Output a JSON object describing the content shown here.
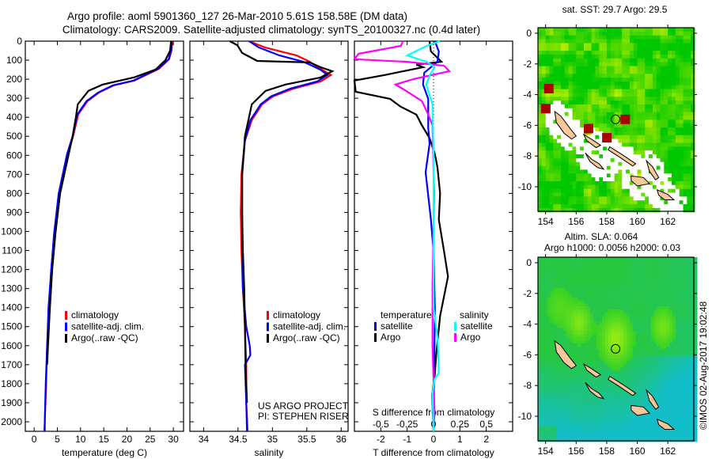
{
  "header": {
    "title_line1": "Argo profile: aoml 5901360_127 26-Mar-2010 5.61S 158.58E (DM data)",
    "title_line2": "Climatology: CARS2009. Satellite-adjusted climatology: synTS_20100327.nc (0.4d later)"
  },
  "colors": {
    "climatology": "#ff0000",
    "satellite": "#0000ff",
    "argo": "#000000",
    "sal_satellite": "#00ffff",
    "sal_argo": "#ff00ff",
    "land": "#f8c898"
  },
  "chart_data": [
    {
      "id": "temperature",
      "type": "line",
      "xlabel": "temperature (deg C)",
      "ylabel": "",
      "xlim": [
        -1.9,
        32.2
      ],
      "ylim": [
        2050,
        0
      ],
      "depth_ticks": [
        "0",
        "100",
        "200",
        "300",
        "400",
        "500",
        "600",
        "700",
        "800",
        "900",
        "1000",
        "1100",
        "1200",
        "1300",
        "1400",
        "1500",
        "1600",
        "1700",
        "1800",
        "1900",
        "2000"
      ],
      "x_ticks": [
        "0",
        "5",
        "10",
        "15",
        "20",
        "25",
        "30"
      ],
      "legend": [
        "climatology",
        "satellite-adj. clim.",
        "Argo(..raw -QC)"
      ],
      "series": [
        {
          "name": "climatology",
          "color": "#ff0000",
          "depth": [
            0,
            50,
            95,
            145,
            207,
            232,
            270,
            315,
            385,
            500,
            593,
            800,
            1010,
            1200,
            1400,
            1600,
            1800,
            2000,
            2050
          ],
          "values": [
            29.8,
            29.6,
            29.1,
            26.9,
            21.6,
            17.2,
            14.0,
            11.5,
            9.5,
            8.4,
            7.3,
            5.4,
            4.4,
            3.7,
            3.2,
            2.8,
            2.6,
            2.3,
            2.2
          ]
        },
        {
          "name": "satellite-adj. clim.",
          "color": "#0000ff",
          "depth": [
            0,
            50,
            95,
            145,
            207,
            232,
            270,
            315,
            385,
            500,
            593,
            800,
            1010,
            1200,
            1400,
            1600,
            1800,
            2000,
            2050
          ],
          "values": [
            29.7,
            29.5,
            29.0,
            26.7,
            21.4,
            17.0,
            13.8,
            11.3,
            9.3,
            8.3,
            7.1,
            5.3,
            4.3,
            3.7,
            3.1,
            2.8,
            2.5,
            2.3,
            2.3
          ]
        },
        {
          "name": "Argo(..raw -QC)",
          "color": "#000000",
          "depth": [
            0,
            50,
            100,
            149,
            190,
            228,
            261,
            332,
            400,
            500,
            600,
            800,
            1010,
            1200,
            1400,
            1600,
            1700
          ],
          "values": [
            29.5,
            29.3,
            28.3,
            26.2,
            21.6,
            14.8,
            11.7,
            9.4,
            9.0,
            8.3,
            7.4,
            5.6,
            4.6,
            3.9,
            3.4,
            3.0,
            2.8
          ]
        }
      ]
    },
    {
      "id": "salinity",
      "type": "line",
      "xlabel": "salinity",
      "xlim": [
        33.8,
        36.1
      ],
      "ylim": [
        2050,
        0
      ],
      "x_ticks": [
        "34",
        "34.5",
        "35",
        "35.5",
        "36"
      ],
      "legend": [
        "climatology",
        "satellite-adj. clim.",
        "Argo(..raw -QC)"
      ],
      "annotation": [
        "US ARGO PROJECT",
        "PI: STEPHEN RISER"
      ],
      "series": [
        {
          "name": "climatology",
          "color": "#ff0000",
          "depth": [
            0,
            33,
            75,
            108,
            150,
            178,
            212,
            249,
            290,
            332,
            415,
            523,
            700,
            900,
            1100,
            1300,
            1500,
            1700,
            1900,
            2050
          ],
          "values": [
            34.66,
            34.89,
            35.35,
            35.54,
            35.72,
            35.85,
            35.7,
            35.31,
            35.01,
            34.85,
            34.7,
            34.6,
            34.55,
            34.54,
            34.55,
            34.57,
            34.6,
            34.62,
            34.62,
            34.64
          ]
        },
        {
          "name": "satellite-adj. clim.",
          "color": "#0000ff",
          "depth": [
            0,
            33,
            75,
            108,
            150,
            178,
            212,
            249,
            290,
            332,
            415,
            523,
            700,
            900,
            1100,
            1300,
            1500,
            1600,
            1650,
            1700,
            1900,
            2050
          ],
          "values": [
            34.66,
            34.8,
            35.1,
            35.45,
            35.7,
            35.8,
            35.65,
            35.26,
            34.98,
            34.83,
            34.68,
            34.6,
            34.56,
            34.56,
            34.56,
            34.57,
            34.62,
            34.67,
            34.68,
            34.6,
            34.62,
            34.63
          ]
        },
        {
          "name": "Argo(..raw -QC)",
          "color": "#000000",
          "depth": [
            0,
            21,
            62,
            104,
            112,
            137,
            158,
            191,
            228,
            261,
            332,
            500,
            700,
            900,
            1100,
            1300,
            1500,
            1700,
            1900
          ],
          "values": [
            34.38,
            34.49,
            34.56,
            34.78,
            35.54,
            35.7,
            35.87,
            35.7,
            35.19,
            34.9,
            34.7,
            34.6,
            34.56,
            34.56,
            34.57,
            34.59,
            34.6,
            34.61,
            34.63
          ]
        }
      ]
    },
    {
      "id": "differences",
      "type": "line",
      "xlabel": "T difference from climatology",
      "xlabel2": "S difference from climatology",
      "xlim_T": [
        -3,
        3
      ],
      "xlim_S": [
        -0.75,
        0.75
      ],
      "ylim": [
        2050,
        0
      ],
      "x_ticks_T": [
        "-2",
        "-1",
        "0",
        "1",
        "2"
      ],
      "x_ticks_S": [
        "-0.5",
        "-0.25",
        "0",
        "0.25",
        "0.5"
      ],
      "legend": {
        "temperature_header": "temperature",
        "salinity_header": "salinity",
        "items": [
          "satellite",
          "Argo",
          "satellite",
          "Argo"
        ]
      },
      "series": [
        {
          "name": "temperature Argo",
          "color": "#000000",
          "scale": "T",
          "depth": [
            0,
            54,
            108,
            124,
            137,
            178,
            207,
            266,
            303,
            344,
            386,
            440,
            510,
            593,
            664,
            800,
            938,
            1104,
            1237,
            1444,
            1651,
            1747,
            1859,
            2050
          ],
          "values": [
            -0.15,
            -0.1,
            0.3,
            -0.65,
            -0.4,
            -1.85,
            -3,
            -2.95,
            -1.65,
            -1.25,
            -0.65,
            -0.45,
            -0.15,
            0.05,
            0.15,
            0.25,
            0.2,
            0.4,
            0.55,
            0.25,
            0.1,
            0.05,
            -0.05,
            0
          ]
        },
        {
          "name": "temperature satellite",
          "color": "#0000ff",
          "scale": "T",
          "depth": [
            0,
            54,
            108,
            166,
            228,
            303,
            456,
            539,
            689,
            938,
            1104,
            1400,
            1700,
            2050
          ],
          "values": [
            0.05,
            0.2,
            0.15,
            -0.35,
            -0.4,
            -0.2,
            -0.2,
            -0.15,
            -0.3,
            -0.1,
            0,
            0.05,
            0.03,
            0
          ]
        },
        {
          "name": "salinity Argo",
          "color": "#ff00ff",
          "scale": "S",
          "depth": [
            0,
            25,
            66,
            95,
            108,
            129,
            158,
            199,
            228,
            261,
            315,
            386,
            440,
            800,
            1300,
            1600,
            1950,
            2050
          ],
          "values": [
            -0.29,
            -0.31,
            -0.71,
            -0.75,
            -0.26,
            0.1,
            0.15,
            -0.19,
            -0.36,
            -0.26,
            -0.11,
            -0.05,
            -0.01,
            0.005,
            -0.01,
            -0.01,
            0.01,
            0
          ]
        },
        {
          "name": "salinity satellite",
          "color": "#00ffff",
          "scale": "S",
          "depth": [
            0,
            25,
            75,
            108,
            137,
            178,
            228,
            332,
            600,
            1000,
            1400,
            1568,
            1743,
            1776,
            1850,
            2050
          ],
          "values": [
            0.06,
            -0.065,
            -0.25,
            -0.065,
            0.01,
            -0.035,
            -0.07,
            -0.01,
            0.0,
            0.0,
            0.0,
            0.04,
            0.05,
            0.01,
            -0.01,
            0
          ]
        }
      ]
    },
    {
      "id": "sst_map",
      "type": "heatmap",
      "title": "sat. SST: 29.7 Argo: 29.5",
      "lonlim": [
        153.5,
        163.7
      ],
      "latlim": [
        -11.6,
        0.36
      ],
      "lon_ticks": [
        "154",
        "156",
        "158",
        "160",
        "162"
      ],
      "lat_ticks": [
        "0",
        "-2",
        "-4",
        "-6",
        "-8",
        "-10"
      ],
      "argo_position": {
        "lon": 158.58,
        "lat": -5.61
      },
      "hot_cells": [
        [
          154.2,
          -3.6
        ],
        [
          154.0,
          -4.9
        ],
        [
          156.8,
          -6.2
        ],
        [
          159.2,
          -5.6
        ],
        [
          158.0,
          -6.8
        ]
      ]
    },
    {
      "id": "sla_map",
      "type": "heatmap",
      "title_line1": "Altim. SLA: 0.064",
      "title_line2": "Argo h1000: 0.0056 h2000: 0.03",
      "lonlim": [
        153.5,
        163.7
      ],
      "latlim": [
        -11.6,
        0.36
      ],
      "lon_ticks": [
        "154",
        "156",
        "158",
        "160",
        "162"
      ],
      "lat_ticks": [
        "0",
        "-2",
        "-4",
        "-6",
        "-8",
        "-10"
      ],
      "argo_position": {
        "lon": 158.58,
        "lat": -5.61
      }
    }
  ],
  "islands": [
    [
      [
        154.6,
        -5.1
      ],
      [
        155.0,
        -5.4
      ],
      [
        155.6,
        -6.2
      ],
      [
        156.0,
        -6.7
      ],
      [
        155.7,
        -6.9
      ],
      [
        155.2,
        -6.5
      ],
      [
        154.7,
        -5.8
      ]
    ],
    [
      [
        156.5,
        -6.6
      ],
      [
        157.0,
        -6.9
      ],
      [
        157.6,
        -7.3
      ],
      [
        157.3,
        -7.45
      ],
      [
        156.7,
        -7.0
      ]
    ],
    [
      [
        158.2,
        -7.4
      ],
      [
        159.0,
        -7.9
      ],
      [
        159.9,
        -8.5
      ],
      [
        159.7,
        -8.65
      ],
      [
        158.8,
        -8.05
      ],
      [
        158.1,
        -7.6
      ]
    ],
    [
      [
        156.6,
        -7.8
      ],
      [
        157.0,
        -8.2
      ],
      [
        157.5,
        -8.5
      ],
      [
        157.8,
        -8.85
      ],
      [
        157.4,
        -8.75
      ],
      [
        156.9,
        -8.35
      ]
    ],
    [
      [
        160.6,
        -8.3
      ],
      [
        161.0,
        -8.7
      ],
      [
        161.4,
        -9.4
      ],
      [
        161.2,
        -9.55
      ],
      [
        160.8,
        -9.0
      ]
    ],
    [
      [
        159.6,
        -9.3
      ],
      [
        160.4,
        -9.4
      ],
      [
        160.8,
        -9.8
      ],
      [
        160.0,
        -9.95
      ],
      [
        159.6,
        -9.6
      ]
    ],
    [
      [
        161.3,
        -10.2
      ],
      [
        162.0,
        -10.5
      ],
      [
        162.4,
        -10.85
      ],
      [
        161.8,
        -10.85
      ],
      [
        161.4,
        -10.55
      ]
    ]
  ],
  "footer": {
    "credit": "©IMOS 02-Aug-2017 19:02:48"
  }
}
